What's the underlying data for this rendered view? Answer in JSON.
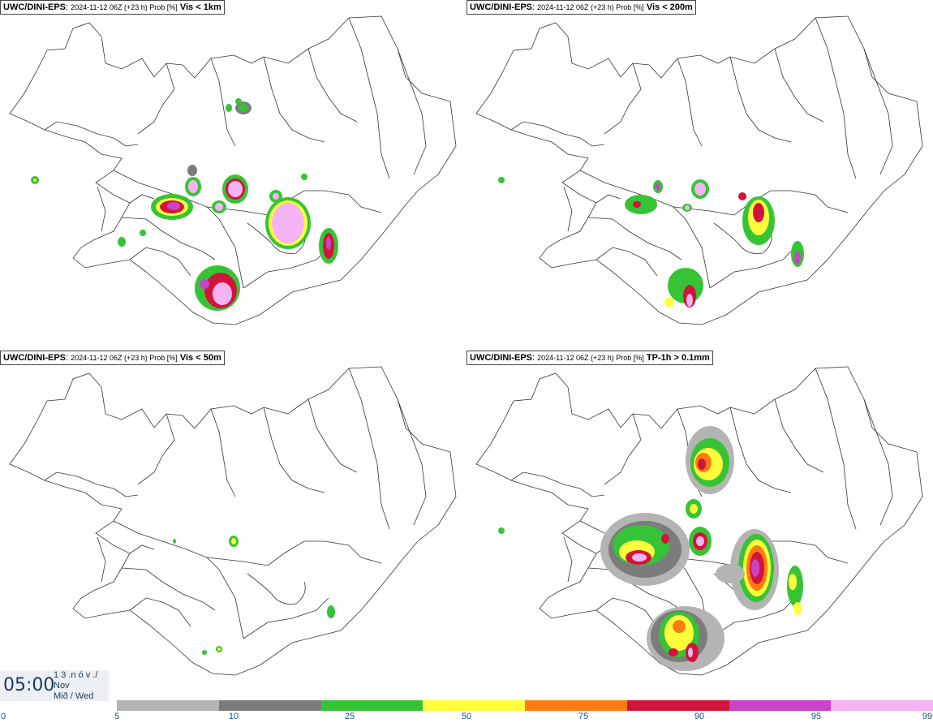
{
  "panels": [
    {
      "model": "UWC/DINI-EPS",
      "run": "2024-11-12 06Z (+23 h) Prob [%]",
      "variable": "Vis < 1km"
    },
    {
      "model": "UWC/DINI-EPS",
      "run": "2024-11-12 06Z (+23 h) Prob [%]",
      "variable": "Vis < 200m"
    },
    {
      "model": "UWC/DINI-EPS",
      "run": "2024-11-12 06Z (+23 h) Prob [%]",
      "variable": "Vis < 50m"
    },
    {
      "model": "UWC/DINI-EPS",
      "run": "2024-11-12 06Z (+23 h) Prob [%]",
      "variable": "TP-1h > 0.1mm"
    }
  ],
  "clock": {
    "time": "05:00",
    "line1": "1 3 .n ó v ./",
    "line2": "Nov",
    "line3": "Mið / Wed"
  },
  "colorbar": {
    "ticks": [
      "0",
      "5",
      "10",
      "25",
      "50",
      "75",
      "90",
      "95",
      "99"
    ],
    "colors": [
      "#ffffff",
      "#b4b4b4",
      "#7c7c7c",
      "#36c436",
      "#ffff3c",
      "#ff7a10",
      "#d2143c",
      "#c844c8",
      "#f4b4f4"
    ]
  }
}
